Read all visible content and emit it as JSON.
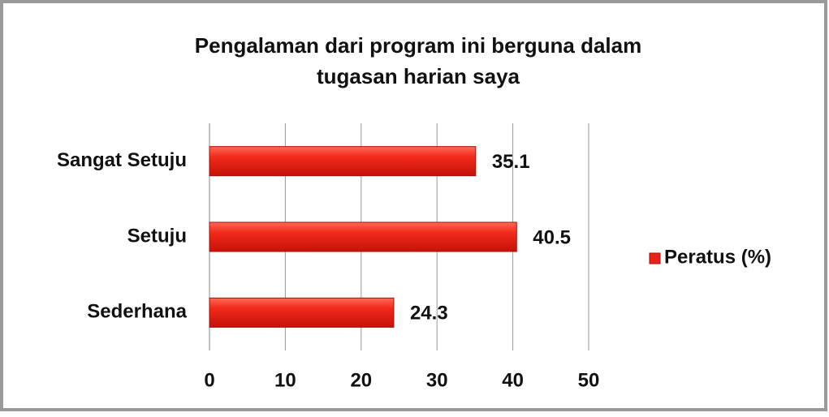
{
  "chart_data": {
    "type": "hbar",
    "title": [
      "Pengalaman dari program ini berguna dalam",
      "tugasan harian saya"
    ],
    "categories": [
      "Sangat Setuju",
      "Setuju",
      "Sederhana"
    ],
    "series": [
      {
        "name": "Peratus (%)",
        "color": "#e8231a",
        "values": [
          35.1,
          40.5,
          24.3
        ]
      }
    ],
    "xlim": [
      0,
      50
    ],
    "xticks": [
      0,
      10,
      20,
      30,
      40,
      50
    ],
    "grid": true,
    "legend": "right"
  }
}
